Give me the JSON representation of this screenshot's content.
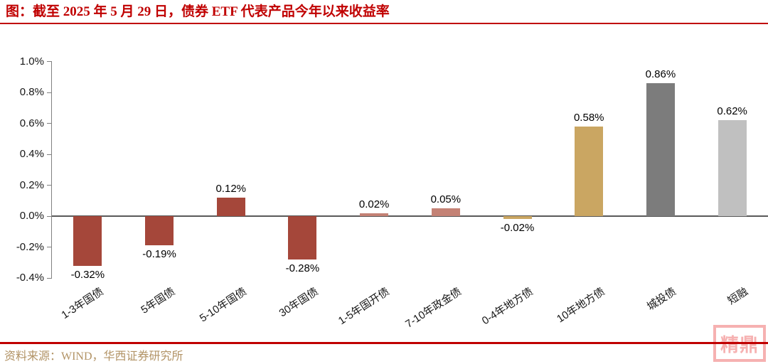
{
  "header": {
    "title": "图：截至 2025 年 5 月 29 日，债券 ETF 代表产品今年以来收益率"
  },
  "footer": {
    "source": "资料来源：WIND，华西证券研究所"
  },
  "watermark": {
    "glyphs": "精鼎",
    "color": "#F6B1B1"
  },
  "colors": {
    "title_red": "#C00000",
    "rule_red": "#C00000",
    "source_gold": "#B29365",
    "axis_gray": "#808080",
    "zero_line_gray": "#595959"
  },
  "chart_data": {
    "type": "bar",
    "title": "截至 2025 年 5 月 29 日，债券 ETF 代表产品今年以来收益率",
    "xlabel": "",
    "ylabel": "",
    "grid": false,
    "legend": "none",
    "ylim": [
      -0.4,
      1.0
    ],
    "y_ticks": [
      "1.0%",
      "0.8%",
      "0.6%",
      "0.4%",
      "0.2%",
      "0.0%",
      "-0.2%",
      "-0.4%"
    ],
    "categories": [
      "1-3年国债",
      "5年国债",
      "5-10年国债",
      "30年国债",
      "1-5年国开债",
      "7-10年政金债",
      "0-4年地方债",
      "10年地方债",
      "城投债",
      "短融"
    ],
    "values": [
      -0.32,
      -0.19,
      0.12,
      -0.28,
      0.02,
      0.05,
      -0.02,
      0.58,
      0.86,
      0.62
    ],
    "value_labels": [
      "-0.32%",
      "-0.19%",
      "0.12%",
      "-0.28%",
      "0.02%",
      "0.05%",
      "-0.02%",
      "0.58%",
      "0.86%",
      "0.62%"
    ],
    "bar_colors": [
      "#A5473A",
      "#A5473A",
      "#A5473A",
      "#A5473A",
      "#C48275",
      "#C48275",
      "#CAA662",
      "#CAA662",
      "#7C7C7C",
      "#C0C0C0"
    ]
  }
}
